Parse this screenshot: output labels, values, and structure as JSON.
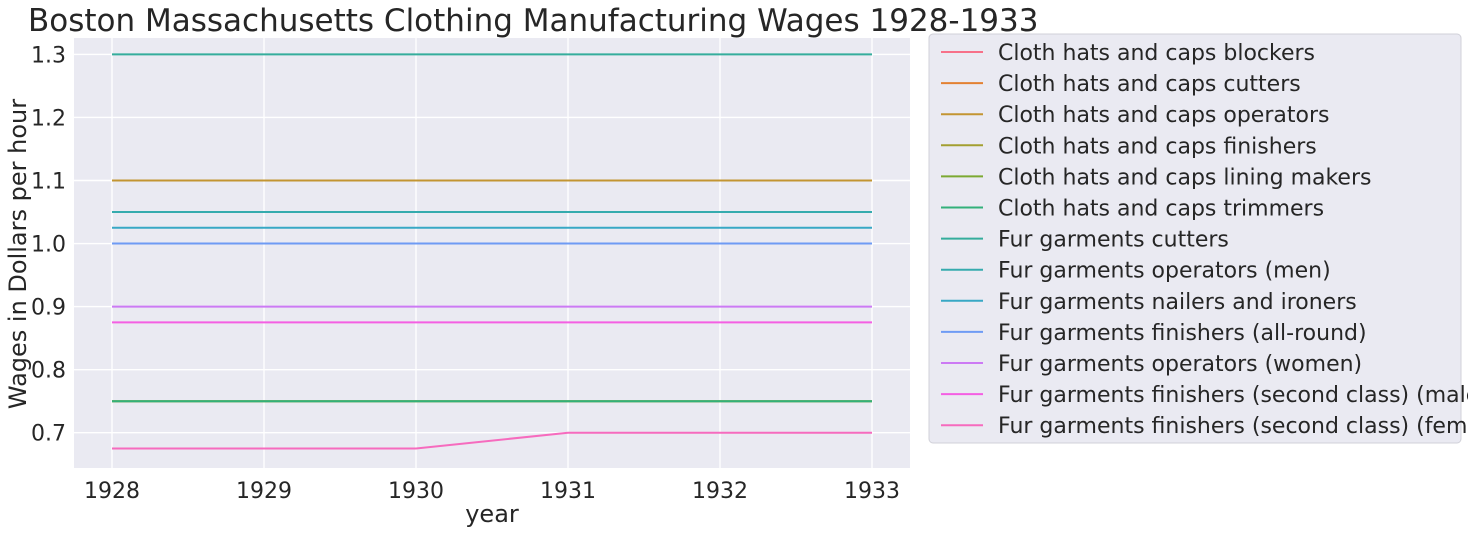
{
  "chart_data": {
    "type": "line",
    "title": "Boston Massachusetts Clothing Manufacturing Wages 1928-1933",
    "xlabel": "year",
    "ylabel": "Wages in Dollars per hour",
    "x": [
      1928,
      1929,
      1930,
      1931,
      1932,
      1933
    ],
    "x_ticks": [
      "1928",
      "1929",
      "1930",
      "1931",
      "1932",
      "1933"
    ],
    "y_ticks": [
      "0.7",
      "0.8",
      "0.9",
      "1.0",
      "1.1",
      "1.2",
      "1.3"
    ],
    "xlim": [
      1927.75,
      1933.25
    ],
    "ylim": [
      0.644,
      1.326
    ],
    "grid": true,
    "legend_position": "outside right",
    "series": [
      {
        "name": "Cloth hats and caps blockers",
        "color": "#f77189",
        "values": [
          1.1,
          1.1,
          1.1,
          1.1,
          1.1,
          1.1
        ]
      },
      {
        "name": "Cloth hats and caps cutters",
        "color": "#e38132",
        "values": [
          1.1,
          1.1,
          1.1,
          1.1,
          1.1,
          1.1
        ]
      },
      {
        "name": "Cloth hats and caps operators",
        "color": "#c39532",
        "values": [
          1.1,
          1.1,
          1.1,
          1.1,
          1.1,
          1.1
        ]
      },
      {
        "name": "Cloth hats and caps finishers",
        "color": "#a39f31",
        "values": [
          0.75,
          0.75,
          0.75,
          0.75,
          0.75,
          0.75
        ]
      },
      {
        "name": "Cloth hats and caps lining makers",
        "color": "#7ca932",
        "values": [
          0.75,
          0.75,
          0.75,
          0.75,
          0.75,
          0.75
        ]
      },
      {
        "name": "Cloth hats and caps trimmers",
        "color": "#33b07a",
        "values": [
          0.75,
          0.75,
          0.75,
          0.75,
          0.75,
          0.75
        ]
      },
      {
        "name": "Fur garments cutters",
        "color": "#35ad9c",
        "values": [
          1.3,
          1.3,
          1.3,
          1.3,
          1.3,
          1.3
        ]
      },
      {
        "name": "Fur garments operators (men)",
        "color": "#36abae",
        "values": [
          1.05,
          1.05,
          1.05,
          1.05,
          1.05,
          1.05
        ]
      },
      {
        "name": "Fur garments nailers and ironers",
        "color": "#38a8c5",
        "values": [
          1.025,
          1.025,
          1.025,
          1.025,
          1.025,
          1.025
        ]
      },
      {
        "name": "Fur garments finishers (all-round)",
        "color": "#6e9bf4",
        "values": [
          1.0,
          1.0,
          1.0,
          1.0,
          1.0,
          1.0
        ]
      },
      {
        "name": "Fur garments operators (women)",
        "color": "#cc7af4",
        "values": [
          0.9,
          0.9,
          0.9,
          0.9,
          0.9,
          0.9
        ]
      },
      {
        "name": "Fur garments finishers (second class) (male)",
        "color": "#f45fe3",
        "values": [
          0.875,
          0.875,
          0.875,
          0.875,
          0.875,
          0.875
        ]
      },
      {
        "name": "Fur garments finishers (second class) (female)",
        "color": "#f66bbe",
        "values": [
          0.675,
          0.675,
          0.675,
          0.7,
          0.7,
          0.7
        ]
      }
    ]
  }
}
